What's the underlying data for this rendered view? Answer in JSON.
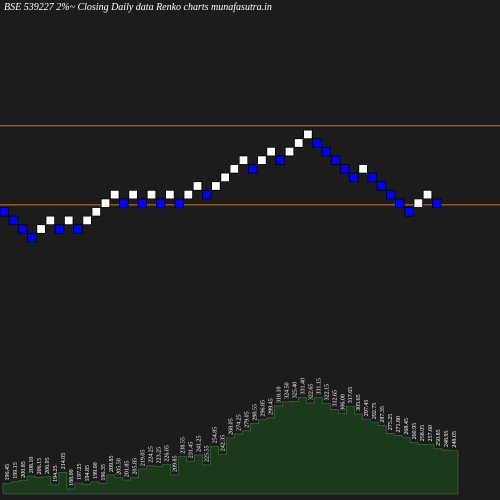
{
  "title": "BSE 539227 2%~  Closing Daily data  Renko  charts munafasutra.in",
  "colors": {
    "background": "#1c1c1c",
    "up_brick": "#ffffff",
    "down_brick": "#0000ff",
    "brick_border": "#000000",
    "resistance_line": "#c87832",
    "volume_fill": "#1b3a1b",
    "volume_stroke": "#3f7a3f",
    "label": "#ffffff"
  },
  "chart_data": {
    "type": "renko",
    "brick_size_pct": 2,
    "levels": [
      12,
      11,
      10,
      9,
      10,
      11,
      10,
      11,
      10,
      11,
      12,
      13,
      14,
      13,
      14,
      13,
      14,
      13,
      14,
      13,
      14,
      15,
      14,
      15,
      16,
      17,
      18,
      17,
      18,
      19,
      18,
      19,
      20,
      21,
      20,
      19,
      18,
      17,
      16,
      17,
      16,
      15,
      14,
      13,
      12,
      13,
      14,
      13
    ],
    "directions": [
      "down",
      "down",
      "down",
      "down",
      "up",
      "up",
      "down",
      "up",
      "down",
      "up",
      "up",
      "up",
      "up",
      "down",
      "up",
      "down",
      "up",
      "down",
      "up",
      "down",
      "up",
      "up",
      "down",
      "up",
      "up",
      "up",
      "up",
      "down",
      "up",
      "up",
      "down",
      "up",
      "up",
      "up",
      "down",
      "down",
      "down",
      "down",
      "down",
      "up",
      "down",
      "down",
      "down",
      "down",
      "down",
      "up",
      "up",
      "down"
    ],
    "horizontal_lines": [
      22,
      12.8
    ],
    "volume_labels": [
      "196.45",
      "199.15",
      "200.85",
      "208.10",
      "206.15",
      "206.95",
      "194.25",
      "214.05",
      "188.00",
      "197.25",
      "194.85",
      "199.00",
      "196.35",
      "209.85",
      "205.50",
      "201.85",
      "205.85",
      "219.05",
      "224.25",
      "223.25",
      "226.05",
      "209.85",
      "238.55",
      "231.45",
      "241.25",
      "225.55",
      "254.85",
      "242.35",
      "268.05",
      "274.25",
      "279.05",
      "290.55",
      "296.85",
      "299.45",
      "318.10",
      "324.50",
      "325.40",
      "331.40",
      "322.65",
      "331.15",
      "322.15",
      "312.65",
      "306.00",
      "317.65",
      "305.65",
      "297.45",
      "292.75",
      "287.35",
      "275.25",
      "271.80",
      "268.45",
      "260.95",
      "258.05",
      "257.60",
      "250.85",
      "248.95",
      "248.05"
    ]
  }
}
